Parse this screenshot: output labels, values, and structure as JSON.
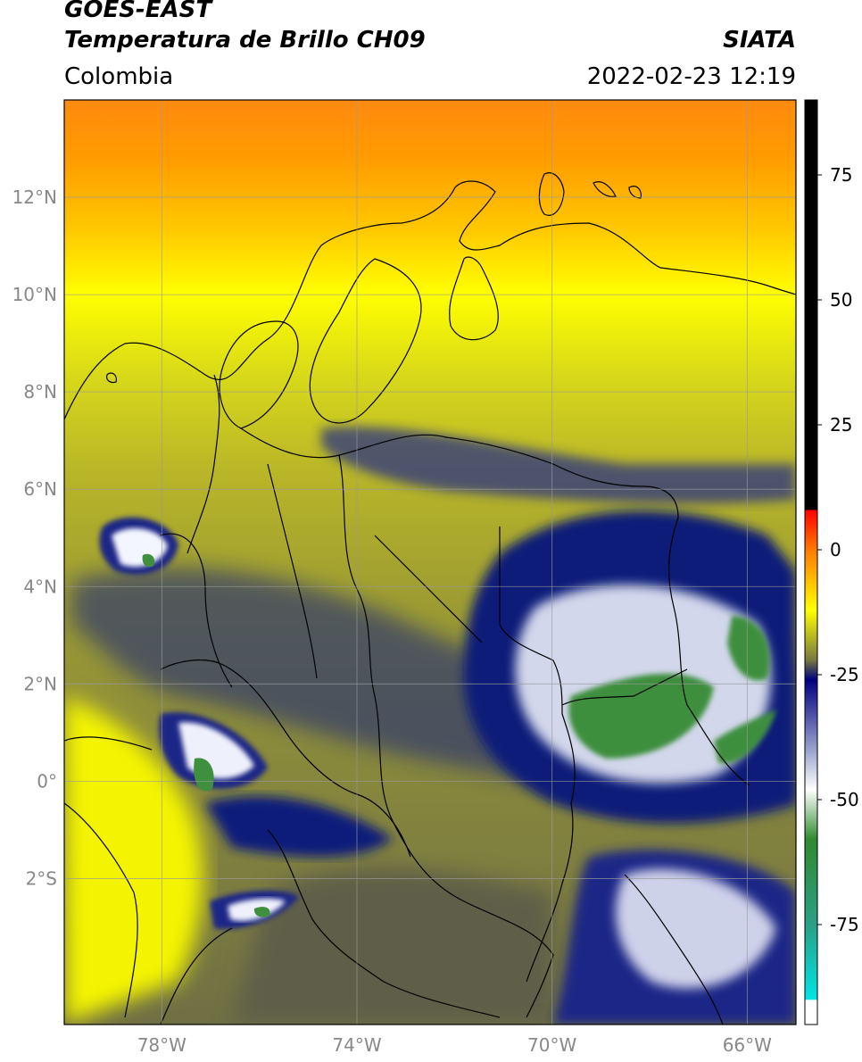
{
  "header": {
    "satellite": "GOES-EAST",
    "product": "Temperatura de Brillo CH09",
    "organization": "SIATA",
    "region": "Colombia",
    "datetime": "2022-02-23 12:19"
  },
  "map": {
    "lon_range": [
      -80,
      -65
    ],
    "lat_range": [
      -5,
      14
    ],
    "lat_ticks": [
      {
        "value": 12,
        "label": "12°N"
      },
      {
        "value": 10,
        "label": "10°N"
      },
      {
        "value": 8,
        "label": "8°N"
      },
      {
        "value": 6,
        "label": "6°N"
      },
      {
        "value": 4,
        "label": "4°N"
      },
      {
        "value": 2,
        "label": "2°N"
      },
      {
        "value": 0,
        "label": "0°"
      },
      {
        "value": -2,
        "label": "2°S"
      }
    ],
    "lon_ticks": [
      {
        "value": -78,
        "label": "78°W"
      },
      {
        "value": -74,
        "label": "74°W"
      },
      {
        "value": -70,
        "label": "70°W"
      },
      {
        "value": -66,
        "label": "66°W"
      }
    ],
    "grid": true
  },
  "colorbar": {
    "range": [
      -95,
      90
    ],
    "ticks": [
      {
        "value": 75,
        "label": "75"
      },
      {
        "value": 50,
        "label": "50"
      },
      {
        "value": 25,
        "label": "25"
      },
      {
        "value": 0,
        "label": "0"
      },
      {
        "value": -25,
        "label": "-25"
      },
      {
        "value": -50,
        "label": "-50"
      },
      {
        "value": -75,
        "label": "-75"
      }
    ],
    "stops": [
      {
        "value": 90,
        "color": "#000000"
      },
      {
        "value": 8,
        "color": "#000000"
      },
      {
        "value": 7.9,
        "color": "#ff0000"
      },
      {
        "value": 0,
        "color": "#ff7a00"
      },
      {
        "value": -12,
        "color": "#ffff00"
      },
      {
        "value": -22,
        "color": "#7a7a40"
      },
      {
        "value": -26,
        "color": "#000080"
      },
      {
        "value": -40,
        "color": "#9aa2cc"
      },
      {
        "value": -48,
        "color": "#ffffff"
      },
      {
        "value": -58,
        "color": "#2f8a2f"
      },
      {
        "value": -75,
        "color": "#2aa086"
      },
      {
        "value": -90,
        "color": "#00e5e5"
      },
      {
        "value": -90.1,
        "color": "#ffffff"
      },
      {
        "value": -95,
        "color": "#ffffff"
      }
    ]
  }
}
